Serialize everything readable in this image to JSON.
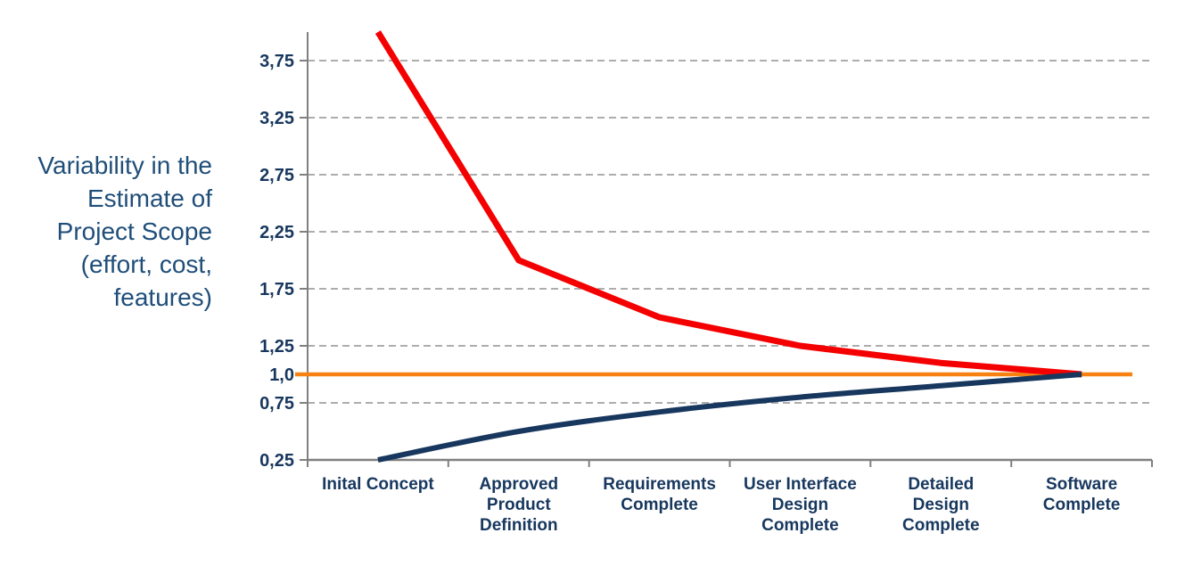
{
  "colors": {
    "background": "#FFFFFF",
    "upper_line": "#F40000",
    "lower_line": "#17375E",
    "baseline_line": "#F78212",
    "axis": "#808080",
    "gridline": "#ADADAD",
    "tick_label": "#17375E",
    "category_label": "#17375E",
    "side_label": "#1F4E79"
  },
  "side_label": {
    "lines": [
      "Variability in the",
      "Estimate of",
      "Project Scope",
      "(effort, cost,",
      "features)"
    ]
  },
  "chart_data": {
    "type": "line",
    "title": "",
    "xlabel": "",
    "ylabel": "Variability in the Estimate of Project Scope (effort, cost, features)",
    "ylim": [
      0.25,
      4.0
    ],
    "grid": "horizontal-dashed",
    "legend": "none",
    "categories": [
      "Inital Concept",
      "Approved Product Definition",
      "Requirements Complete",
      "User Interface Design Complete",
      "Detailed Design Complete",
      "Software Complete"
    ],
    "category_label_lines": [
      [
        "Inital Concept"
      ],
      [
        "Approved",
        "Product",
        "Definition"
      ],
      [
        "Requirements",
        "Complete"
      ],
      [
        "User Interface",
        "Design",
        "Complete"
      ],
      [
        "Detailed",
        "Design",
        "Complete"
      ],
      [
        "Software",
        "Complete"
      ]
    ],
    "y_ticks": [
      {
        "label": "3,75",
        "value": 3.75,
        "grid": true
      },
      {
        "label": "3,25",
        "value": 3.25,
        "grid": true
      },
      {
        "label": "2,75",
        "value": 2.75,
        "grid": true
      },
      {
        "label": "2,25",
        "value": 2.25,
        "grid": true
      },
      {
        "label": "1,75",
        "value": 1.75,
        "grid": true
      },
      {
        "label": "1,25",
        "value": 1.25,
        "grid": true
      },
      {
        "label": "1,0",
        "value": 1.0,
        "grid": false
      },
      {
        "label": "0,75",
        "value": 0.75,
        "grid": true
      },
      {
        "label": "0,25",
        "value": 0.25,
        "grid": false
      }
    ],
    "series": [
      {
        "name": "upper-variability",
        "color_key": "upper_line",
        "style": "sharp",
        "width": 7,
        "values": [
          4.0,
          2.0,
          1.5,
          1.25,
          1.1,
          1.0
        ]
      },
      {
        "name": "lower-variability",
        "color_key": "lower_line",
        "style": "smooth",
        "width": 6,
        "values": [
          0.25,
          0.5,
          0.67,
          0.8,
          0.9,
          1.0
        ]
      }
    ],
    "reference_line": {
      "name": "baseline",
      "value": 1.0,
      "color_key": "baseline_line",
      "width": 4.5
    }
  }
}
